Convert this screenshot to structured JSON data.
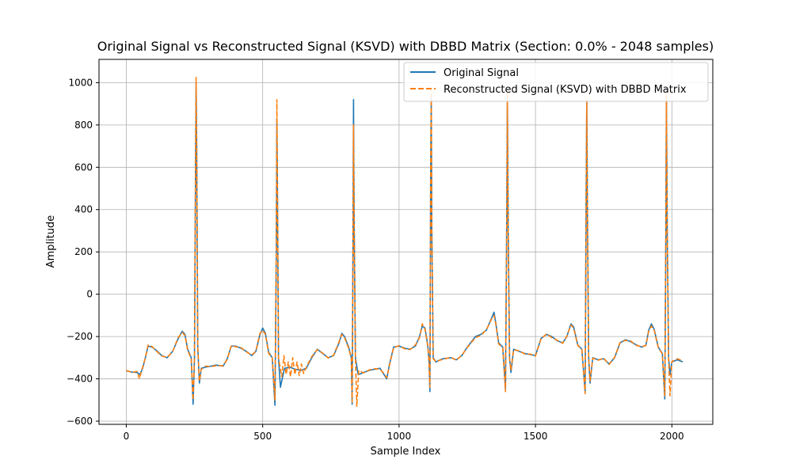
{
  "chart_data": {
    "type": "line",
    "title": "Original Signal vs Reconstructed Signal (KSVD) with DBBD Matrix (Section: 0.0% - 2048 samples)",
    "xlabel": "Sample Index",
    "ylabel": "Amplitude",
    "xlim": [
      -100,
      2150
    ],
    "ylim": [
      -615,
      1110
    ],
    "xticks": [
      0,
      500,
      1000,
      1500,
      2000
    ],
    "yticks": [
      -600,
      -400,
      -200,
      0,
      200,
      400,
      600,
      800,
      1000
    ],
    "grid": true,
    "legend_position": "top-right",
    "n_samples": 2048,
    "series": [
      {
        "name": "Original Signal",
        "color": "#1f77b4",
        "style": "solid",
        "points": [
          [
            0,
            -362
          ],
          [
            20,
            -368
          ],
          [
            40,
            -370
          ],
          [
            50,
            -380
          ],
          [
            60,
            -350
          ],
          [
            70,
            -300
          ],
          [
            80,
            -245
          ],
          [
            95,
            -250
          ],
          [
            110,
            -265
          ],
          [
            130,
            -290
          ],
          [
            150,
            -300
          ],
          [
            170,
            -270
          ],
          [
            190,
            -210
          ],
          [
            205,
            -175
          ],
          [
            215,
            -190
          ],
          [
            225,
            -260
          ],
          [
            238,
            -300
          ],
          [
            245,
            -520
          ],
          [
            250,
            -300
          ],
          [
            254,
            600
          ],
          [
            256,
            1000
          ],
          [
            258,
            700
          ],
          [
            262,
            -250
          ],
          [
            268,
            -420
          ],
          [
            275,
            -350
          ],
          [
            290,
            -345
          ],
          [
            310,
            -340
          ],
          [
            330,
            -335
          ],
          [
            355,
            -340
          ],
          [
            370,
            -305
          ],
          [
            385,
            -245
          ],
          [
            400,
            -245
          ],
          [
            420,
            -255
          ],
          [
            440,
            -270
          ],
          [
            460,
            -290
          ],
          [
            475,
            -270
          ],
          [
            490,
            -190
          ],
          [
            500,
            -160
          ],
          [
            510,
            -185
          ],
          [
            522,
            -275
          ],
          [
            535,
            -300
          ],
          [
            545,
            -525
          ],
          [
            550,
            200
          ],
          [
            552,
            830
          ],
          [
            554,
            500
          ],
          [
            558,
            -300
          ],
          [
            565,
            -440
          ],
          [
            580,
            -350
          ],
          [
            600,
            -345
          ],
          [
            620,
            -355
          ],
          [
            640,
            -360
          ],
          [
            660,
            -350
          ],
          [
            680,
            -300
          ],
          [
            700,
            -260
          ],
          [
            720,
            -280
          ],
          [
            740,
            -300
          ],
          [
            760,
            -290
          ],
          [
            780,
            -230
          ],
          [
            790,
            -185
          ],
          [
            800,
            -200
          ],
          [
            815,
            -250
          ],
          [
            825,
            -300
          ],
          [
            828,
            -520
          ],
          [
            831,
            200
          ],
          [
            833,
            920
          ],
          [
            835,
            400
          ],
          [
            840,
            -300
          ],
          [
            850,
            -380
          ],
          [
            870,
            -370
          ],
          [
            890,
            -360
          ],
          [
            910,
            -355
          ],
          [
            930,
            -350
          ],
          [
            945,
            -380
          ],
          [
            955,
            -400
          ],
          [
            965,
            -330
          ],
          [
            980,
            -250
          ],
          [
            1000,
            -245
          ],
          [
            1020,
            -255
          ],
          [
            1040,
            -260
          ],
          [
            1060,
            -245
          ],
          [
            1075,
            -200
          ],
          [
            1085,
            -150
          ],
          [
            1095,
            -160
          ],
          [
            1105,
            -240
          ],
          [
            1110,
            -320
          ],
          [
            1113,
            -460
          ],
          [
            1116,
            600
          ],
          [
            1118,
            930
          ],
          [
            1120,
            300
          ],
          [
            1125,
            -300
          ],
          [
            1135,
            -320
          ],
          [
            1160,
            -305
          ],
          [
            1190,
            -300
          ],
          [
            1210,
            -310
          ],
          [
            1230,
            -290
          ],
          [
            1250,
            -250
          ],
          [
            1280,
            -200
          ],
          [
            1300,
            -190
          ],
          [
            1320,
            -170
          ],
          [
            1340,
            -110
          ],
          [
            1348,
            -85
          ],
          [
            1355,
            -140
          ],
          [
            1365,
            -230
          ],
          [
            1380,
            -250
          ],
          [
            1390,
            -450
          ],
          [
            1395,
            400
          ],
          [
            1397,
            940
          ],
          [
            1400,
            300
          ],
          [
            1405,
            -300
          ],
          [
            1410,
            -370
          ],
          [
            1420,
            -260
          ],
          [
            1440,
            -270
          ],
          [
            1460,
            -280
          ],
          [
            1480,
            -285
          ],
          [
            1500,
            -290
          ],
          [
            1520,
            -210
          ],
          [
            1540,
            -190
          ],
          [
            1560,
            -200
          ],
          [
            1580,
            -220
          ],
          [
            1600,
            -230
          ],
          [
            1615,
            -200
          ],
          [
            1630,
            -140
          ],
          [
            1640,
            -155
          ],
          [
            1655,
            -240
          ],
          [
            1670,
            -260
          ],
          [
            1682,
            -460
          ],
          [
            1686,
            500
          ],
          [
            1688,
            920
          ],
          [
            1691,
            300
          ],
          [
            1695,
            -300
          ],
          [
            1700,
            -420
          ],
          [
            1710,
            -300
          ],
          [
            1730,
            -310
          ],
          [
            1750,
            -305
          ],
          [
            1770,
            -330
          ],
          [
            1790,
            -300
          ],
          [
            1810,
            -230
          ],
          [
            1830,
            -215
          ],
          [
            1850,
            -225
          ],
          [
            1870,
            -240
          ],
          [
            1890,
            -250
          ],
          [
            1905,
            -240
          ],
          [
            1915,
            -170
          ],
          [
            1925,
            -140
          ],
          [
            1935,
            -165
          ],
          [
            1950,
            -250
          ],
          [
            1965,
            -280
          ],
          [
            1974,
            -495
          ],
          [
            1978,
            300
          ],
          [
            1980,
            940
          ],
          [
            1983,
            300
          ],
          [
            1988,
            -300
          ],
          [
            1993,
            -380
          ],
          [
            2000,
            -320
          ],
          [
            2020,
            -310
          ],
          [
            2040,
            -320
          ]
        ]
      },
      {
        "name": "Reconstructed Signal (KSVD) with DBBD Matrix",
        "color": "#ff7f0e",
        "style": "dashed",
        "points": [
          [
            0,
            -360
          ],
          [
            20,
            -370
          ],
          [
            40,
            -365
          ],
          [
            48,
            -400
          ],
          [
            60,
            -345
          ],
          [
            70,
            -300
          ],
          [
            80,
            -240
          ],
          [
            95,
            -248
          ],
          [
            110,
            -268
          ],
          [
            130,
            -292
          ],
          [
            150,
            -298
          ],
          [
            170,
            -272
          ],
          [
            190,
            -205
          ],
          [
            205,
            -180
          ],
          [
            215,
            -195
          ],
          [
            225,
            -265
          ],
          [
            238,
            -305
          ],
          [
            245,
            -500
          ],
          [
            250,
            -290
          ],
          [
            254,
            650
          ],
          [
            256,
            1025
          ],
          [
            258,
            720
          ],
          [
            262,
            -250
          ],
          [
            268,
            -410
          ],
          [
            275,
            -355
          ],
          [
            290,
            -340
          ],
          [
            310,
            -342
          ],
          [
            330,
            -338
          ],
          [
            355,
            -338
          ],
          [
            370,
            -308
          ],
          [
            385,
            -242
          ],
          [
            400,
            -248
          ],
          [
            420,
            -252
          ],
          [
            440,
            -272
          ],
          [
            460,
            -288
          ],
          [
            475,
            -268
          ],
          [
            490,
            -185
          ],
          [
            500,
            -170
          ],
          [
            510,
            -190
          ],
          [
            522,
            -280
          ],
          [
            535,
            -300
          ],
          [
            545,
            -500
          ],
          [
            550,
            250
          ],
          [
            552,
            920
          ],
          [
            554,
            520
          ],
          [
            558,
            -300
          ],
          [
            562,
            -330
          ],
          [
            570,
            -390
          ],
          [
            578,
            -290
          ],
          [
            586,
            -380
          ],
          [
            594,
            -320
          ],
          [
            602,
            -390
          ],
          [
            610,
            -300
          ],
          [
            618,
            -380
          ],
          [
            626,
            -320
          ],
          [
            634,
            -385
          ],
          [
            642,
            -330
          ],
          [
            650,
            -375
          ],
          [
            660,
            -345
          ],
          [
            680,
            -295
          ],
          [
            700,
            -262
          ],
          [
            720,
            -278
          ],
          [
            740,
            -302
          ],
          [
            760,
            -288
          ],
          [
            780,
            -225
          ],
          [
            790,
            -190
          ],
          [
            800,
            -205
          ],
          [
            815,
            -255
          ],
          [
            825,
            -305
          ],
          [
            828,
            -510
          ],
          [
            831,
            200
          ],
          [
            833,
            800
          ],
          [
            835,
            380
          ],
          [
            840,
            -300
          ],
          [
            845,
            -530
          ],
          [
            852,
            -360
          ],
          [
            870,
            -372
          ],
          [
            890,
            -358
          ],
          [
            910,
            -352
          ],
          [
            930,
            -355
          ],
          [
            945,
            -375
          ],
          [
            955,
            -395
          ],
          [
            965,
            -335
          ],
          [
            980,
            -252
          ],
          [
            1000,
            -243
          ],
          [
            1020,
            -258
          ],
          [
            1040,
            -262
          ],
          [
            1060,
            -240
          ],
          [
            1075,
            -205
          ],
          [
            1085,
            -140
          ],
          [
            1095,
            -165
          ],
          [
            1105,
            -245
          ],
          [
            1110,
            -325
          ],
          [
            1113,
            -440
          ],
          [
            1116,
            620
          ],
          [
            1118,
            970
          ],
          [
            1120,
            310
          ],
          [
            1125,
            -305
          ],
          [
            1135,
            -318
          ],
          [
            1160,
            -308
          ],
          [
            1190,
            -298
          ],
          [
            1210,
            -312
          ],
          [
            1230,
            -288
          ],
          [
            1250,
            -252
          ],
          [
            1280,
            -205
          ],
          [
            1300,
            -195
          ],
          [
            1320,
            -168
          ],
          [
            1340,
            -115
          ],
          [
            1348,
            -100
          ],
          [
            1355,
            -145
          ],
          [
            1365,
            -235
          ],
          [
            1380,
            -252
          ],
          [
            1390,
            -460
          ],
          [
            1395,
            420
          ],
          [
            1397,
            950
          ],
          [
            1400,
            310
          ],
          [
            1405,
            -305
          ],
          [
            1410,
            -360
          ],
          [
            1420,
            -262
          ],
          [
            1440,
            -268
          ],
          [
            1460,
            -282
          ],
          [
            1480,
            -283
          ],
          [
            1500,
            -292
          ],
          [
            1520,
            -212
          ],
          [
            1540,
            -188
          ],
          [
            1560,
            -205
          ],
          [
            1580,
            -218
          ],
          [
            1600,
            -232
          ],
          [
            1615,
            -198
          ],
          [
            1630,
            -145
          ],
          [
            1640,
            -160
          ],
          [
            1655,
            -242
          ],
          [
            1670,
            -262
          ],
          [
            1682,
            -470
          ],
          [
            1686,
            520
          ],
          [
            1688,
            920
          ],
          [
            1691,
            310
          ],
          [
            1695,
            -305
          ],
          [
            1700,
            -410
          ],
          [
            1710,
            -302
          ],
          [
            1730,
            -312
          ],
          [
            1750,
            -302
          ],
          [
            1770,
            -332
          ],
          [
            1790,
            -298
          ],
          [
            1810,
            -228
          ],
          [
            1830,
            -218
          ],
          [
            1850,
            -222
          ],
          [
            1870,
            -242
          ],
          [
            1890,
            -248
          ],
          [
            1905,
            -242
          ],
          [
            1915,
            -175
          ],
          [
            1925,
            -150
          ],
          [
            1935,
            -170
          ],
          [
            1950,
            -252
          ],
          [
            1965,
            -282
          ],
          [
            1974,
            -480
          ],
          [
            1978,
            320
          ],
          [
            1980,
            950
          ],
          [
            1983,
            310
          ],
          [
            1988,
            -305
          ],
          [
            1993,
            -480
          ],
          [
            2000,
            -318
          ],
          [
            2020,
            -305
          ],
          [
            2040,
            -315
          ]
        ]
      }
    ]
  }
}
